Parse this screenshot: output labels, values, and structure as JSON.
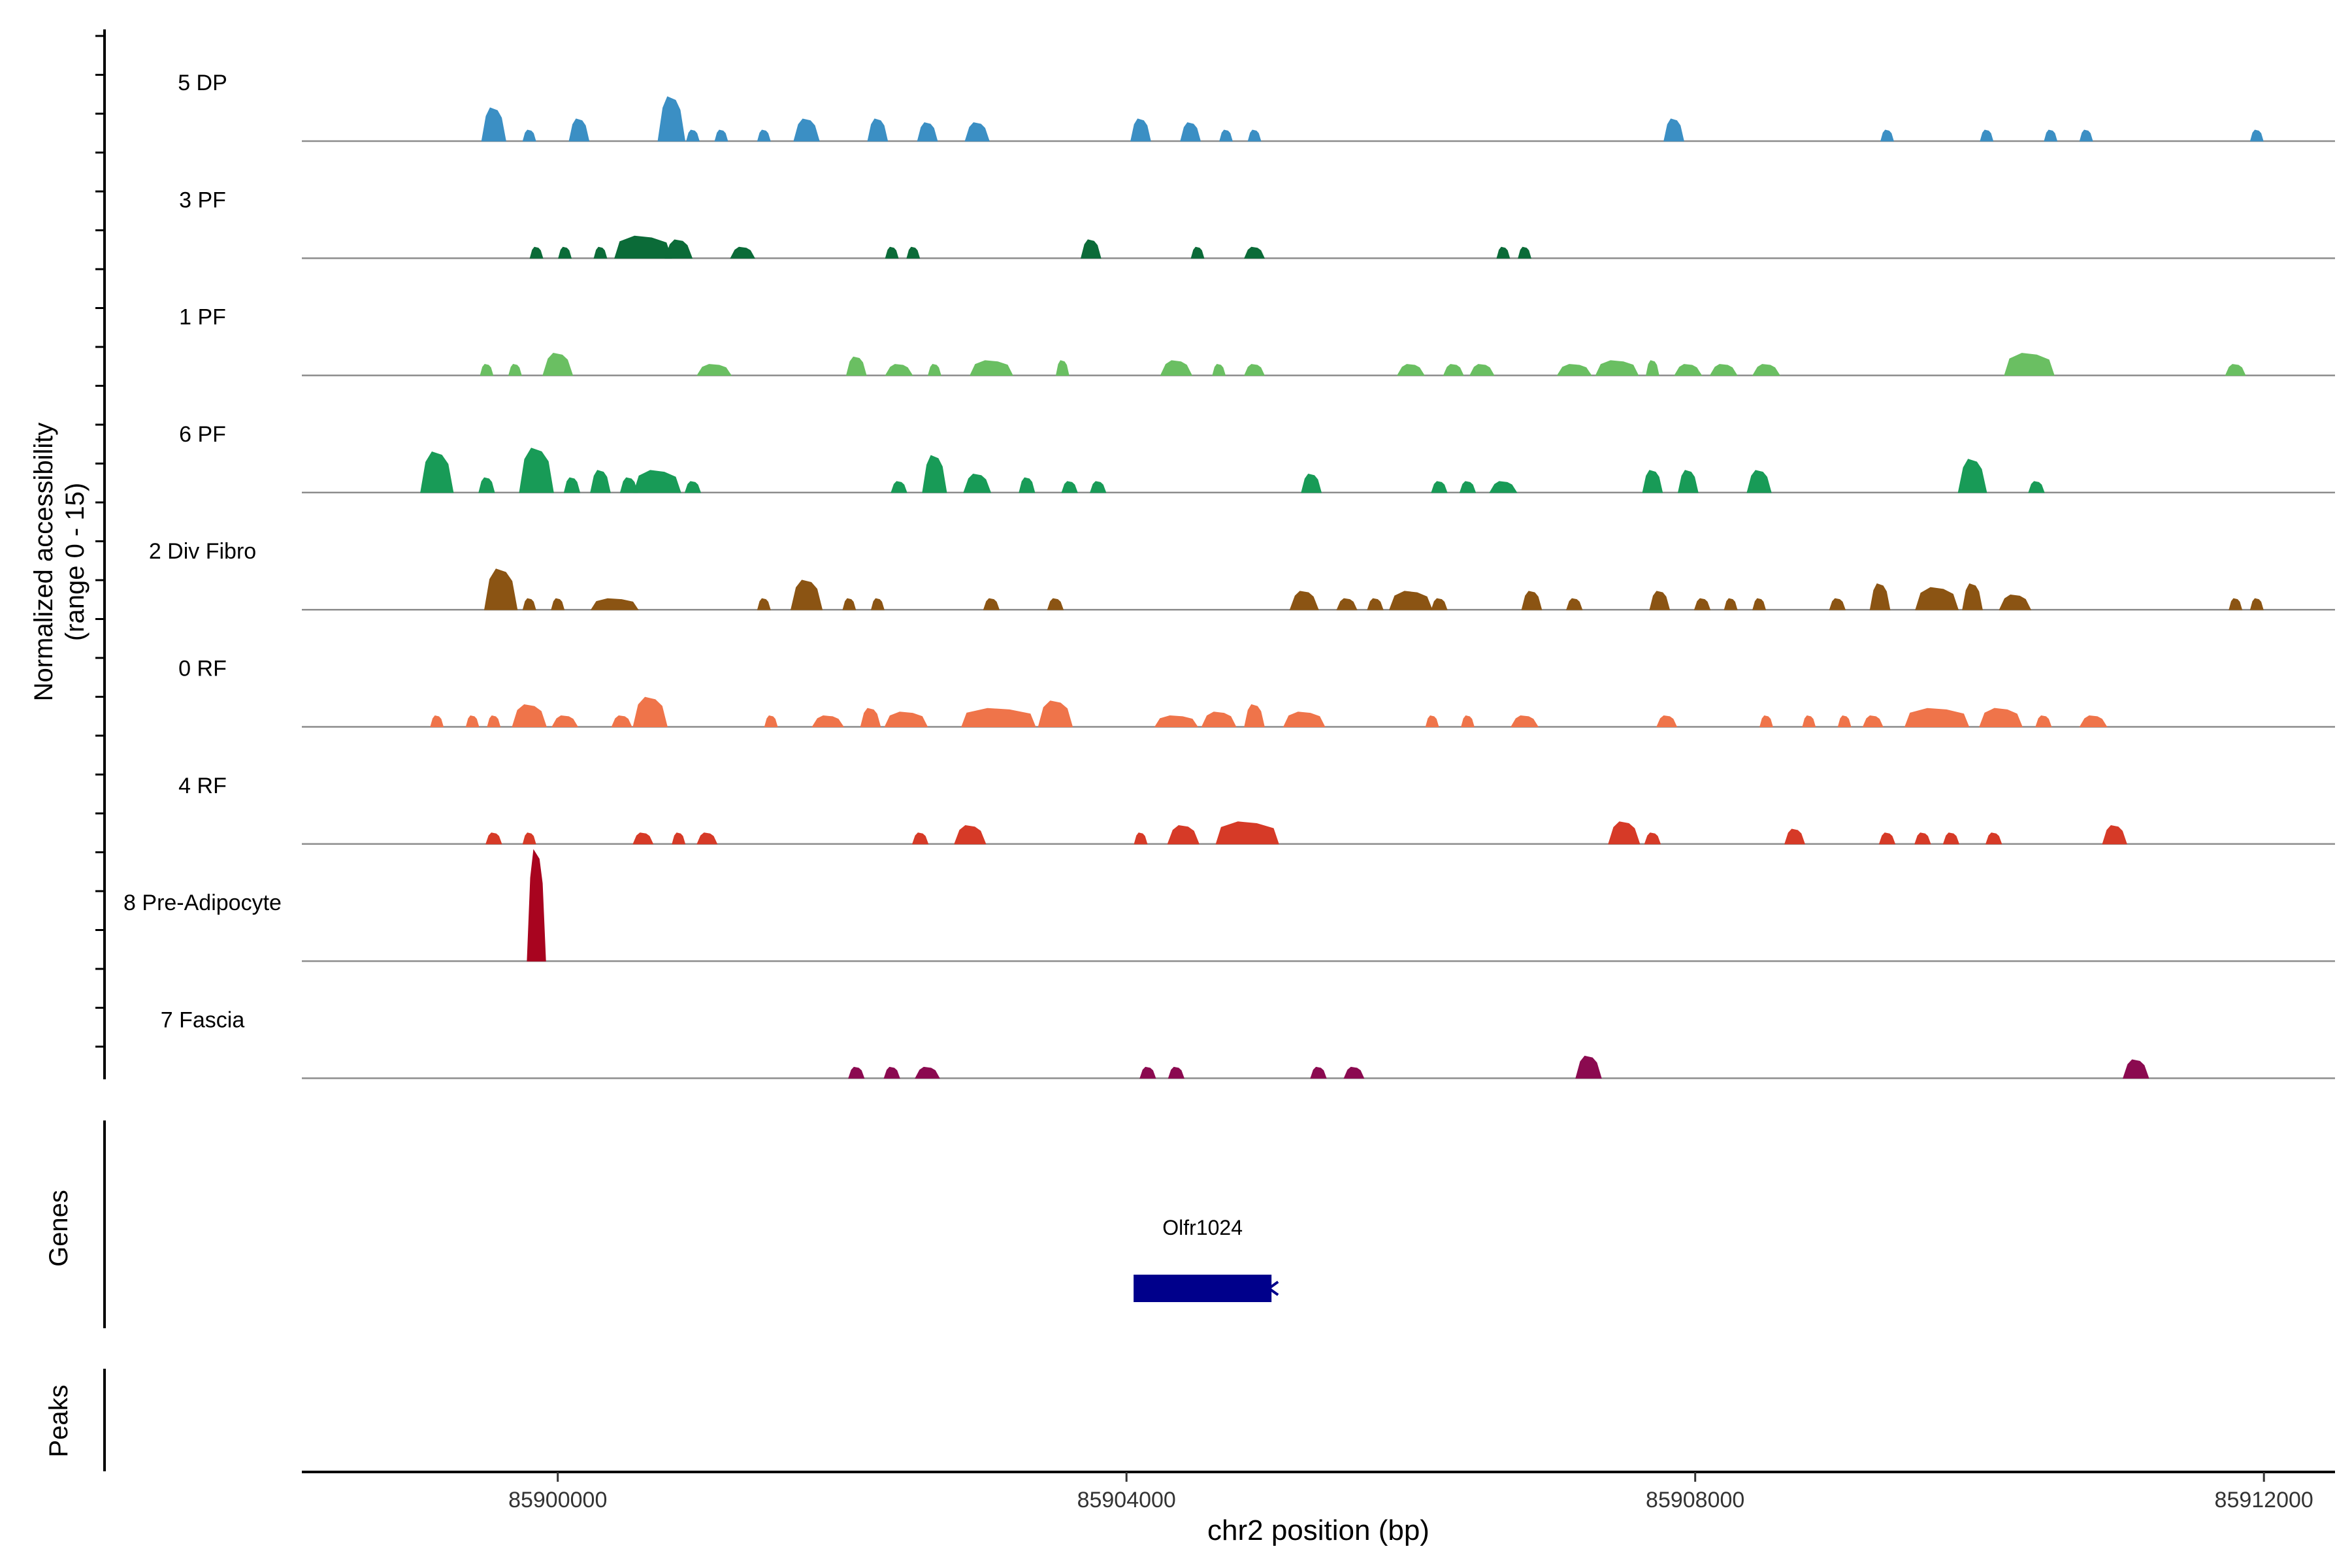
{
  "chart_data": {
    "type": "area",
    "ylabel": [
      "Normalized accessibility",
      "(range 0 - 15)"
    ],
    "xlabel": "chr2 position (bp)",
    "xlim": [
      85898200,
      85912500
    ],
    "xticks": [
      85900000,
      85904000,
      85908000,
      85912000
    ],
    "xtick_labels": [
      "85900000",
      "85904000",
      "85908000",
      "85912000"
    ],
    "ylim": [
      0,
      15
    ],
    "grid": false,
    "gene_panel_label": "Genes",
    "peaks_panel_label": "Peaks",
    "genes": [
      {
        "name": "Olfr1024",
        "start": 85904050,
        "end": 85905020,
        "strand": "-",
        "color": "#00008b"
      }
    ],
    "tracks": [
      {
        "name": "5 DP",
        "color": "#3b8fc4",
        "peaks": [
          [
            85899550,
            4.5,
            170
          ],
          [
            85899800,
            1.5,
            90
          ],
          [
            85900150,
            3,
            140
          ],
          [
            85900800,
            6,
            190
          ],
          [
            85900950,
            1.5,
            90
          ],
          [
            85901150,
            1.5,
            90
          ],
          [
            85901450,
            1.5,
            90
          ],
          [
            85901750,
            3,
            180
          ],
          [
            85902250,
            3,
            140
          ],
          [
            85902600,
            2.5,
            140
          ],
          [
            85902950,
            2.5,
            170
          ],
          [
            85904100,
            3,
            140
          ],
          [
            85904450,
            2.5,
            140
          ],
          [
            85904700,
            1.5,
            90
          ],
          [
            85904900,
            1.5,
            90
          ],
          [
            85907850,
            3,
            140
          ],
          [
            85909350,
            1.5,
            90
          ],
          [
            85910050,
            1.5,
            90
          ],
          [
            85910500,
            1.5,
            90
          ],
          [
            85910750,
            1.5,
            90
          ],
          [
            85911950,
            1.5,
            90
          ]
        ]
      },
      {
        "name": "3 PF",
        "color": "#0b6b38",
        "peaks": [
          [
            85899850,
            1.5,
            90
          ],
          [
            85900050,
            1.5,
            90
          ],
          [
            85900300,
            1.5,
            90
          ],
          [
            85900600,
            3,
            400
          ],
          [
            85900850,
            2.5,
            190
          ],
          [
            85901300,
            1.5,
            170
          ],
          [
            85902350,
            1.5,
            90
          ],
          [
            85902500,
            1.5,
            90
          ],
          [
            85903750,
            2.5,
            140
          ],
          [
            85904500,
            1.5,
            90
          ],
          [
            85904900,
            1.5,
            140
          ],
          [
            85906650,
            1.5,
            90
          ],
          [
            85906800,
            1.5,
            90
          ]
        ]
      },
      {
        "name": "1 PF",
        "color": "#6abf62",
        "peaks": [
          [
            85899500,
            1.5,
            90
          ],
          [
            85899700,
            1.5,
            90
          ],
          [
            85900000,
            3,
            210
          ],
          [
            85901100,
            1.5,
            240
          ],
          [
            85902100,
            2.5,
            140
          ],
          [
            85902400,
            1.5,
            190
          ],
          [
            85902650,
            1.5,
            90
          ],
          [
            85903050,
            2,
            300
          ],
          [
            85903550,
            2,
            90
          ],
          [
            85904350,
            2,
            220
          ],
          [
            85904650,
            1.5,
            90
          ],
          [
            85904900,
            1.5,
            140
          ],
          [
            85906000,
            1.5,
            190
          ],
          [
            85906300,
            1.5,
            140
          ],
          [
            85906500,
            1.5,
            170
          ],
          [
            85907150,
            1.5,
            240
          ],
          [
            85907450,
            2,
            300
          ],
          [
            85907700,
            2,
            90
          ],
          [
            85907950,
            1.5,
            190
          ],
          [
            85908200,
            1.5,
            190
          ],
          [
            85908500,
            1.5,
            190
          ],
          [
            85910350,
            3,
            350
          ],
          [
            85911800,
            1.5,
            140
          ]
        ]
      },
      {
        "name": "6 PF",
        "color": "#189b57",
        "peaks": [
          [
            85899150,
            5.5,
            230
          ],
          [
            85899500,
            2,
            110
          ],
          [
            85899850,
            6,
            240
          ],
          [
            85900100,
            2,
            110
          ],
          [
            85900300,
            3,
            140
          ],
          [
            85900500,
            2,
            120
          ],
          [
            85900700,
            3,
            330
          ],
          [
            85900950,
            1.5,
            110
          ],
          [
            85902400,
            1.5,
            110
          ],
          [
            85902650,
            5,
            170
          ],
          [
            85902950,
            2.5,
            190
          ],
          [
            85903300,
            2,
            110
          ],
          [
            85903600,
            1.5,
            110
          ],
          [
            85903800,
            1.5,
            110
          ],
          [
            85905300,
            2.5,
            140
          ],
          [
            85906200,
            1.5,
            110
          ],
          [
            85906400,
            1.5,
            110
          ],
          [
            85906650,
            1.5,
            190
          ],
          [
            85907700,
            3,
            140
          ],
          [
            85907950,
            3,
            140
          ],
          [
            85908450,
            3,
            170
          ],
          [
            85909950,
            4.5,
            200
          ],
          [
            85910400,
            1.5,
            110
          ]
        ]
      },
      {
        "name": "2 Div Fibro",
        "color": "#8b5413",
        "peaks": [
          [
            85899600,
            5.5,
            230
          ],
          [
            85899800,
            1.5,
            90
          ],
          [
            85900000,
            1.5,
            90
          ],
          [
            85900400,
            1.5,
            330
          ],
          [
            85901450,
            1.5,
            90
          ],
          [
            85901750,
            4,
            220
          ],
          [
            85902050,
            1.5,
            90
          ],
          [
            85902250,
            1.5,
            90
          ],
          [
            85903050,
            1.5,
            110
          ],
          [
            85903500,
            1.5,
            110
          ],
          [
            85905250,
            2.5,
            200
          ],
          [
            85905550,
            1.5,
            140
          ],
          [
            85905750,
            1.5,
            110
          ],
          [
            85906000,
            2.5,
            300
          ],
          [
            85906200,
            1.5,
            110
          ],
          [
            85906850,
            2.5,
            140
          ],
          [
            85907150,
            1.5,
            110
          ],
          [
            85907750,
            2.5,
            140
          ],
          [
            85908050,
            1.5,
            110
          ],
          [
            85908250,
            1.5,
            90
          ],
          [
            85908450,
            1.5,
            90
          ],
          [
            85909000,
            1.5,
            110
          ],
          [
            85909300,
            3.5,
            140
          ],
          [
            85909700,
            3,
            300
          ],
          [
            85909950,
            3.5,
            140
          ],
          [
            85910250,
            2,
            220
          ],
          [
            85911800,
            1.5,
            90
          ],
          [
            85911950,
            1.5,
            90
          ]
        ]
      },
      {
        "name": "0 RF",
        "color": "#ef744a",
        "peaks": [
          [
            85899150,
            1.5,
            90
          ],
          [
            85899400,
            1.5,
            90
          ],
          [
            85899550,
            1.5,
            90
          ],
          [
            85899800,
            3,
            240
          ],
          [
            85900050,
            1.5,
            180
          ],
          [
            85900450,
            1.5,
            140
          ],
          [
            85900650,
            4,
            240
          ],
          [
            85901500,
            1.5,
            90
          ],
          [
            85901900,
            1.5,
            220
          ],
          [
            85902200,
            2.5,
            140
          ],
          [
            85902450,
            2,
            300
          ],
          [
            85903100,
            2.5,
            520
          ],
          [
            85903500,
            3.5,
            240
          ],
          [
            85904350,
            1.5,
            300
          ],
          [
            85904650,
            2,
            240
          ],
          [
            85904900,
            3,
            140
          ],
          [
            85905250,
            2,
            290
          ],
          [
            85906150,
            1.5,
            90
          ],
          [
            85906400,
            1.5,
            90
          ],
          [
            85906800,
            1.5,
            190
          ],
          [
            85907800,
            1.5,
            140
          ],
          [
            85908500,
            1.5,
            90
          ],
          [
            85908800,
            1.5,
            90
          ],
          [
            85909050,
            1.5,
            90
          ],
          [
            85909250,
            1.5,
            140
          ],
          [
            85909700,
            2.5,
            450
          ],
          [
            85910150,
            2.5,
            300
          ],
          [
            85910450,
            1.5,
            110
          ],
          [
            85910800,
            1.5,
            190
          ]
        ]
      },
      {
        "name": "4 RF",
        "color": "#d63a27",
        "peaks": [
          [
            85899550,
            1.5,
            110
          ],
          [
            85899800,
            1.5,
            90
          ],
          [
            85900600,
            1.5,
            140
          ],
          [
            85900850,
            1.5,
            90
          ],
          [
            85901050,
            1.5,
            140
          ],
          [
            85902550,
            1.5,
            110
          ],
          [
            85902900,
            2.5,
            220
          ],
          [
            85904100,
            1.5,
            90
          ],
          [
            85904400,
            2.5,
            220
          ],
          [
            85904850,
            3,
            440
          ],
          [
            85907500,
            3,
            220
          ],
          [
            85907700,
            1.5,
            110
          ],
          [
            85908700,
            2,
            140
          ],
          [
            85909350,
            1.5,
            110
          ],
          [
            85909600,
            1.5,
            110
          ],
          [
            85909800,
            1.5,
            110
          ],
          [
            85910100,
            1.5,
            110
          ],
          [
            85910950,
            2.5,
            170
          ]
        ]
      },
      {
        "name": "8 Pre-Adipocyte",
        "color": "#a8041f",
        "peaks": [
          [
            85899850,
            15,
            130
          ]
        ]
      },
      {
        "name": "7 Fascia",
        "color": "#8b0a50",
        "peaks": [
          [
            85902100,
            1.5,
            110
          ],
          [
            85902350,
            1.5,
            110
          ],
          [
            85902600,
            1.5,
            170
          ],
          [
            85904150,
            1.5,
            110
          ],
          [
            85904350,
            1.5,
            110
          ],
          [
            85905350,
            1.5,
            110
          ],
          [
            85905600,
            1.5,
            140
          ],
          [
            85907250,
            3,
            180
          ],
          [
            85911100,
            2.5,
            180
          ]
        ]
      }
    ]
  }
}
